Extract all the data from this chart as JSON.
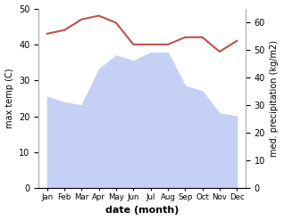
{
  "months": [
    "Jan",
    "Feb",
    "Mar",
    "Apr",
    "May",
    "Jun",
    "Jul",
    "Aug",
    "Sep",
    "Oct",
    "Nov",
    "Dec"
  ],
  "precipitation": [
    33,
    31,
    30,
    43,
    48,
    46,
    49,
    49,
    37,
    35,
    27,
    26
  ],
  "temperature": [
    43,
    44,
    47,
    48,
    46,
    40,
    40,
    40,
    42,
    42,
    38,
    41
  ],
  "temp_color": "#c0504d",
  "precip_fill_color": "#c5d0f5",
  "ylim_left": [
    0,
    50
  ],
  "ylim_right": [
    0,
    65
  ],
  "ylabel_left": "max temp (C)",
  "ylabel_right": "med. precipitation (kg/m2)",
  "xlabel": "date (month)",
  "yticks_left": [
    0,
    10,
    20,
    30,
    40,
    50
  ],
  "yticks_right": [
    0,
    10,
    20,
    30,
    40,
    50,
    60
  ],
  "background_color": "#ffffff"
}
